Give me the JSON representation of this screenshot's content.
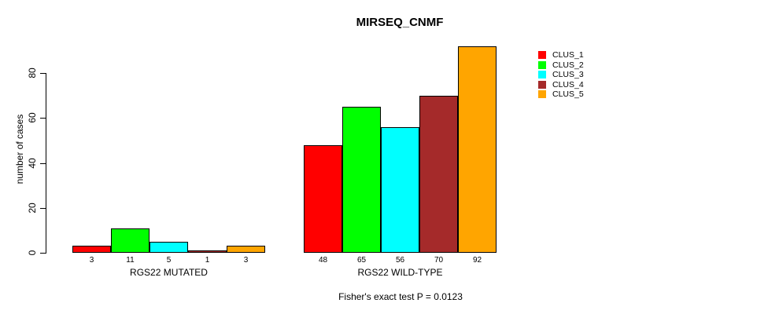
{
  "chart_data": {
    "type": "bar",
    "title": "MIRSEQ_CNMF",
    "ylabel": "number of cases",
    "caption": "Fisher's exact test P = 0.0123",
    "yticks": [
      0,
      20,
      40,
      60,
      80
    ],
    "ylim": [
      0,
      92
    ],
    "grid": false,
    "legend_position": "right",
    "categories": [
      "RGS22 MUTATED",
      "RGS22 WILD-TYPE"
    ],
    "series": [
      {
        "name": "CLUS_1",
        "color": "#FF0000",
        "values": [
          3,
          48
        ]
      },
      {
        "name": "CLUS_2",
        "color": "#00FF00",
        "values": [
          11,
          65
        ]
      },
      {
        "name": "CLUS_3",
        "color": "#00FFFF",
        "values": [
          5,
          56
        ]
      },
      {
        "name": "CLUS_4",
        "color": "#A52A2A",
        "values": [
          1,
          70
        ]
      },
      {
        "name": "CLUS_5",
        "color": "#FFA500",
        "values": [
          3,
          92
        ]
      }
    ],
    "groups": [
      {
        "label": "RGS22 MUTATED",
        "values": [
          3,
          11,
          5,
          1,
          3
        ]
      },
      {
        "label": "RGS22 WILD-TYPE",
        "values": [
          48,
          65,
          56,
          70,
          92
        ]
      }
    ],
    "legend": {
      "entries": [
        {
          "label": "CLUS_1",
          "color": "#FF0000"
        },
        {
          "label": "CLUS_2",
          "color": "#00FF00"
        },
        {
          "label": "CLUS_3",
          "color": "#00FFFF"
        },
        {
          "label": "CLUS_4",
          "color": "#A52A2A"
        },
        {
          "label": "CLUS_5",
          "color": "#FFA500"
        }
      ]
    }
  }
}
